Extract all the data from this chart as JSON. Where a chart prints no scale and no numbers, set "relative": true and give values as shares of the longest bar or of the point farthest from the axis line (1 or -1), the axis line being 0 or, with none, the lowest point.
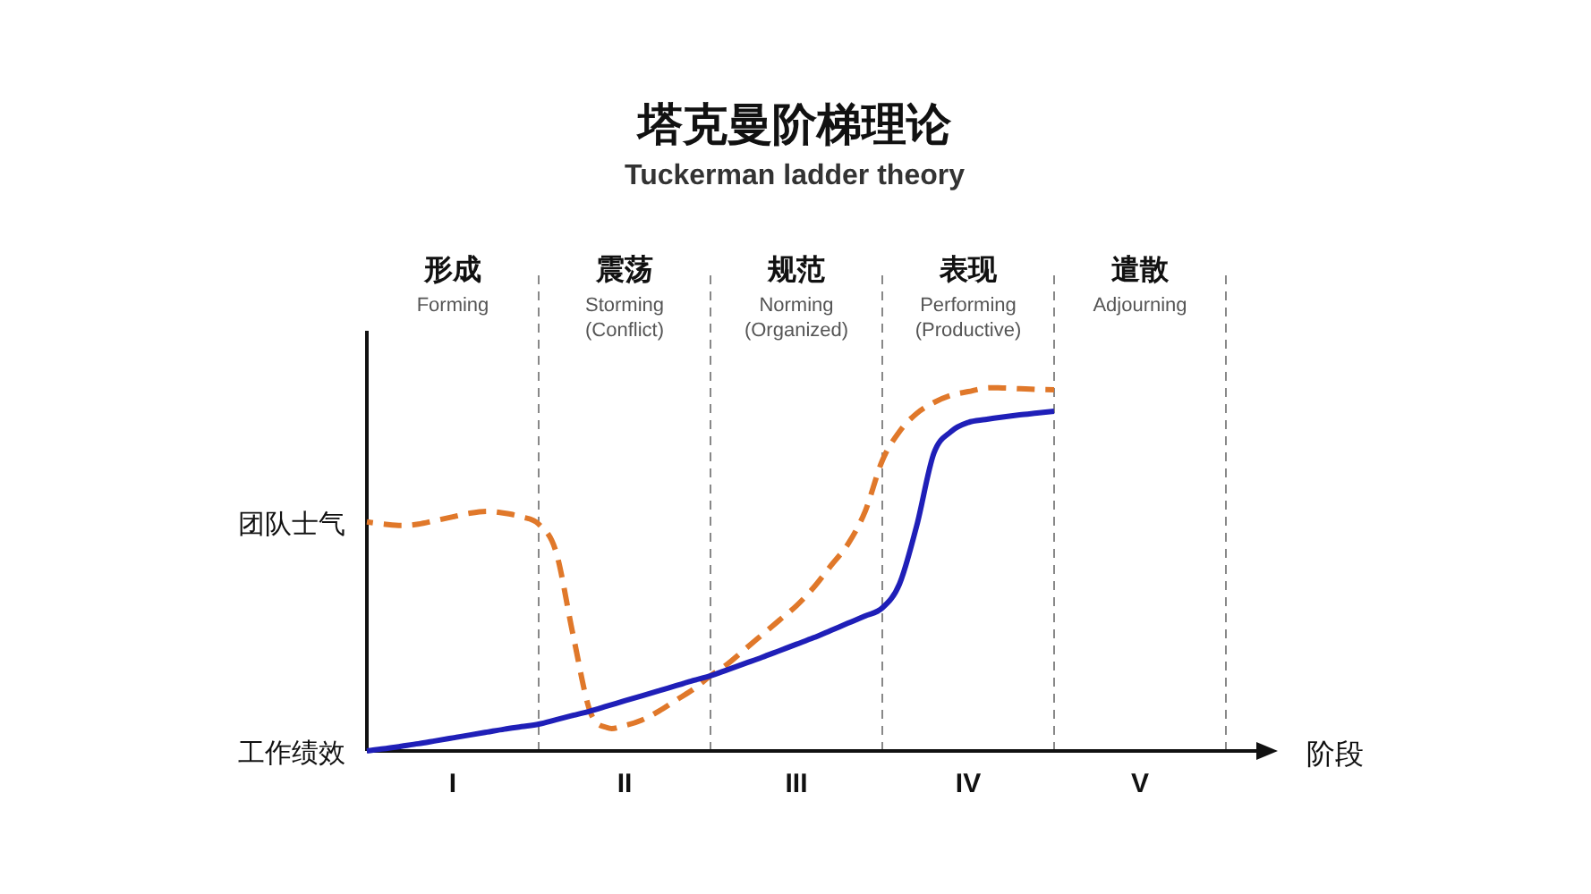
{
  "chart_data": {
    "type": "line",
    "title": "塔克曼阶梯理论",
    "subtitle": "Tuckerman ladder theory",
    "xlabel": "阶段",
    "relative": true,
    "categories": [
      null,
      null,
      null,
      null,
      null,
      "I",
      null,
      null,
      null,
      null,
      null,
      null,
      null,
      null,
      null,
      "II",
      null,
      null,
      null,
      null,
      null,
      null,
      null,
      null,
      null,
      "III",
      null,
      null,
      null,
      null,
      null,
      null,
      null,
      null,
      null,
      "IV",
      null,
      null,
      null,
      null,
      null,
      null,
      null,
      null,
      null,
      "V",
      null,
      null,
      null,
      null,
      null
    ],
    "marker": "none",
    "grid": false,
    "series": [
      {
        "name": "团队士气",
        "color": "#e0782a",
        "line_style": "dashed",
        "values": [
          0.631,
          0.625,
          0.621,
          0.625,
          0.635,
          0.645,
          0.655,
          0.66,
          0.655,
          0.645,
          0.625,
          0.55,
          0.32,
          0.108,
          0.064,
          0.07,
          0.085,
          0.11,
          0.14,
          0.17,
          0.207,
          0.24,
          0.28,
          0.32,
          0.36,
          0.4,
          0.45,
          0.51,
          0.57,
          0.66,
          0.8,
          0.88,
          0.93,
          0.96,
          0.98,
          0.99,
          1.0,
          1.0,
          0.998,
          0.996,
          0.995,
          null,
          null,
          null,
          null,
          null,
          null,
          null,
          null,
          null,
          null
        ]
      },
      {
        "name": "工作绩效",
        "color": "#1f1fb8",
        "line_style": "solid",
        "values": [
          0,
          0.006,
          0.013,
          0.02,
          0.028,
          0.036,
          0.044,
          0.052,
          0.06,
          0.067,
          0.074,
          0.086,
          0.098,
          0.11,
          0.124,
          0.138,
          0.152,
          0.166,
          0.18,
          0.194,
          0.207,
          0.224,
          0.241,
          0.258,
          0.276,
          0.294,
          0.312,
          0.332,
          0.352,
          0.372,
          0.394,
          0.46,
          0.62,
          0.82,
          0.88,
          0.905,
          0.913,
          0.92,
          0.926,
          0.931,
          0.936,
          null,
          null,
          null,
          null,
          null,
          null,
          null,
          null,
          null,
          null
        ]
      }
    ],
    "annotations": [
      "形成",
      "震荡",
      "规范",
      "表现",
      "遣散",
      "Forming",
      "Storming (Conflict)",
      "Norming (Organized)",
      "Performing (Productive)",
      "Adjourning"
    ]
  }
}
